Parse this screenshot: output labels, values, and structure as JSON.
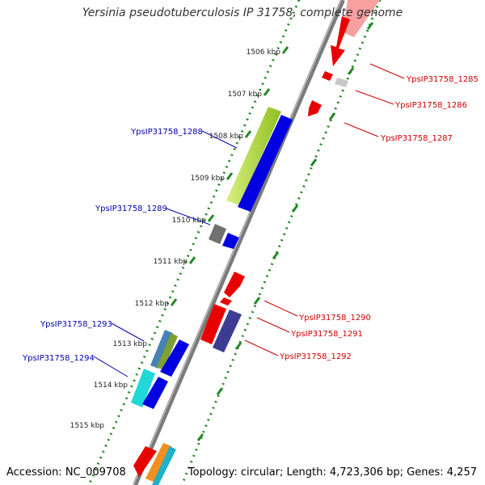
{
  "title": "Yersinia pseudotuberculosis IP 31758, complete genome",
  "footer": {
    "accession": "Accession: NC_009708",
    "topology": "Topology: circular; Length: 4,723,306 bp; Genes: 4,257"
  },
  "colors": {
    "forward_label": "#cc0000",
    "reverse_label": "#0000aa",
    "ruler_dots": "#228822",
    "backbone": "#888888"
  },
  "ticks": [
    "1506 kbp",
    "1507 kbp",
    "1508 kbp",
    "1509 kbp",
    "1510 kbp",
    "1511 kbp",
    "1512 kbp",
    "1513 kbp",
    "1514 kbp",
    "1515 kbp"
  ],
  "gene_labels": [
    {
      "id": "YpsIP31758_1285",
      "strand": "forward"
    },
    {
      "id": "YpsIP31758_1286",
      "strand": "forward"
    },
    {
      "id": "YpsIP31758_1287",
      "strand": "forward"
    },
    {
      "id": "YpsIP31758_1288",
      "strand": "reverse"
    },
    {
      "id": "YpsIP31758_1289",
      "strand": "reverse"
    },
    {
      "id": "YpsIP31758_1290",
      "strand": "forward"
    },
    {
      "id": "YpsIP31758_1291",
      "strand": "forward"
    },
    {
      "id": "YpsIP31758_1292",
      "strand": "forward"
    },
    {
      "id": "YpsIP31758_1293",
      "strand": "reverse"
    },
    {
      "id": "YpsIP31758_1294",
      "strand": "reverse"
    }
  ]
}
